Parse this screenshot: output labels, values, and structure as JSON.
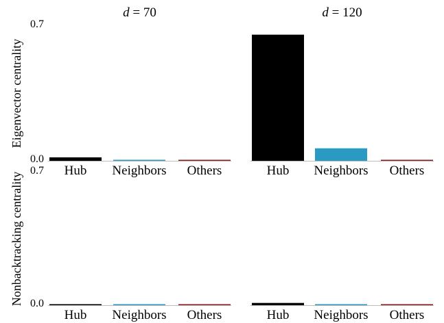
{
  "chart_data": [
    {
      "type": "bar",
      "panel_title": "d = 70",
      "ylabel": "Eigenvector centrality",
      "categories": [
        "Hub",
        "Neighbors",
        "Others"
      ],
      "values": [
        0.018,
        0.003,
        0.003
      ],
      "colors": [
        "#000000",
        "#2b9ac3",
        "#8b1a1a"
      ],
      "ylim": [
        0.0,
        0.7
      ],
      "yticks": [
        "0.0",
        "0.7"
      ],
      "grid": false
    },
    {
      "type": "bar",
      "panel_title": "d = 120",
      "ylabel": "",
      "categories": [
        "Hub",
        "Neighbors",
        "Others"
      ],
      "values": [
        0.655,
        0.065,
        0.003
      ],
      "colors": [
        "#000000",
        "#2b9ac3",
        "#8b1a1a"
      ],
      "ylim": [
        0.0,
        0.7
      ],
      "yticks": [],
      "grid": false
    },
    {
      "type": "bar",
      "panel_title": "",
      "ylabel": "Nonbacktracking centrality",
      "categories": [
        "Hub",
        "Neighbors",
        "Others"
      ],
      "values": [
        0.005,
        0.002,
        0.002
      ],
      "colors": [
        "#000000",
        "#2b9ac3",
        "#8b1a1a"
      ],
      "ylim": [
        0.0,
        0.7
      ],
      "yticks": [
        "0.0",
        "0.7"
      ],
      "grid": false
    },
    {
      "type": "bar",
      "panel_title": "",
      "ylabel": "",
      "categories": [
        "Hub",
        "Neighbors",
        "Others"
      ],
      "values": [
        0.012,
        0.002,
        0.002
      ],
      "colors": [
        "#000000",
        "#2b9ac3",
        "#8b1a1a"
      ],
      "ylim": [
        0.0,
        0.7
      ],
      "yticks": [],
      "grid": false
    }
  ]
}
